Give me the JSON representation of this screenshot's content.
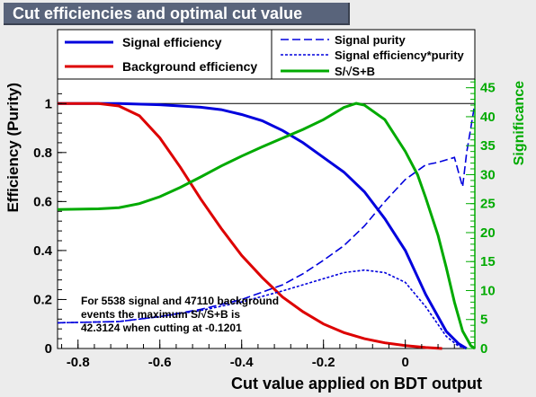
{
  "title": "Cut efficiencies and optimal cut value",
  "note": {
    "line1": "For 5538 signal and 47110 background",
    "line2": "events the maximum S/√S+B is",
    "line3": "42.3124 when cutting at -0.1201"
  },
  "chart_data": {
    "type": "line",
    "xlabel": "Cut value applied on BDT output",
    "ylabel": "Efficiency (Purity)",
    "y2label": "Significance",
    "xlim": [
      -0.85,
      0.17
    ],
    "ylim": [
      0,
      1.1
    ],
    "y2lim": [
      0,
      46.5
    ],
    "xticks": [
      -0.8,
      -0.6,
      -0.4,
      -0.2,
      0
    ],
    "yticks": [
      0,
      0.2,
      0.4,
      0.6,
      0.8,
      1
    ],
    "y2ticks": [
      0,
      5,
      10,
      15,
      20,
      25,
      30,
      35,
      40,
      45
    ],
    "legend": [
      {
        "name": "Signal efficiency",
        "color": "#0000dd",
        "style": "solid"
      },
      {
        "name": "Background efficiency",
        "color": "#dd0000",
        "style": "solid"
      },
      {
        "name": "Signal purity",
        "color": "#0000dd",
        "style": "dashed"
      },
      {
        "name": "Signal efficiency*purity",
        "color": "#0000dd",
        "style": "dotted"
      },
      {
        "name": "S/√S+B",
        "color": "#00aa00",
        "style": "solid"
      }
    ],
    "series": [
      {
        "name": "Signal efficiency",
        "axis": "left",
        "x": [
          -0.85,
          -0.8,
          -0.75,
          -0.7,
          -0.6,
          -0.5,
          -0.45,
          -0.4,
          -0.35,
          -0.3,
          -0.25,
          -0.2,
          -0.15,
          -0.1,
          -0.05,
          0,
          0.05,
          0.1,
          0.13,
          0.15
        ],
        "y": [
          1,
          1,
          1,
          1,
          0.995,
          0.985,
          0.975,
          0.955,
          0.93,
          0.89,
          0.84,
          0.78,
          0.72,
          0.64,
          0.53,
          0.4,
          0.22,
          0.07,
          0.02,
          0.0
        ]
      },
      {
        "name": "Background efficiency",
        "axis": "left",
        "x": [
          -0.85,
          -0.75,
          -0.7,
          -0.65,
          -0.6,
          -0.55,
          -0.5,
          -0.45,
          -0.4,
          -0.35,
          -0.3,
          -0.25,
          -0.2,
          -0.15,
          -0.1,
          -0.05,
          0,
          0.05,
          0.09
        ],
        "y": [
          1,
          1,
          0.99,
          0.95,
          0.86,
          0.74,
          0.61,
          0.49,
          0.38,
          0.29,
          0.21,
          0.15,
          0.1,
          0.065,
          0.04,
          0.023,
          0.012,
          0.004,
          0.0
        ]
      },
      {
        "name": "Signal purity",
        "axis": "left",
        "x": [
          -0.85,
          -0.7,
          -0.6,
          -0.5,
          -0.4,
          -0.3,
          -0.25,
          -0.2,
          -0.15,
          -0.1,
          -0.05,
          0,
          0.05,
          0.08,
          0.1,
          0.12,
          0.13,
          0.14,
          0.15,
          0.16,
          0.17
        ],
        "y": [
          0.105,
          0.11,
          0.13,
          0.16,
          0.2,
          0.26,
          0.305,
          0.36,
          0.42,
          0.5,
          0.6,
          0.69,
          0.75,
          0.76,
          0.77,
          0.78,
          0.72,
          0.66,
          0.8,
          0.9,
          1.0
        ]
      },
      {
        "name": "Signal efficiency*purity",
        "axis": "left",
        "x": [
          -0.85,
          -0.7,
          -0.6,
          -0.5,
          -0.4,
          -0.3,
          -0.25,
          -0.2,
          -0.15,
          -0.1,
          -0.05,
          0,
          0.05,
          0.1,
          0.13,
          0.15
        ],
        "y": [
          0.105,
          0.11,
          0.13,
          0.155,
          0.19,
          0.235,
          0.26,
          0.285,
          0.31,
          0.32,
          0.31,
          0.27,
          0.17,
          0.05,
          0.01,
          0.0
        ]
      },
      {
        "name": "S/√S+B",
        "axis": "right",
        "x": [
          -0.85,
          -0.75,
          -0.7,
          -0.65,
          -0.6,
          -0.55,
          -0.5,
          -0.45,
          -0.4,
          -0.35,
          -0.3,
          -0.25,
          -0.2,
          -0.15,
          -0.12,
          -0.1,
          -0.05,
          0,
          0.03,
          0.05,
          0.08,
          0.1,
          0.12,
          0.14,
          0.16,
          0.17
        ],
        "y": [
          24,
          24.1,
          24.3,
          25,
          26.2,
          27.8,
          29.6,
          31.5,
          33.2,
          34.8,
          36.3,
          37.8,
          39.5,
          41.6,
          42.3,
          42,
          39.5,
          34,
          30,
          26,
          19.5,
          14,
          8,
          3,
          0.5,
          0
        ]
      }
    ]
  }
}
